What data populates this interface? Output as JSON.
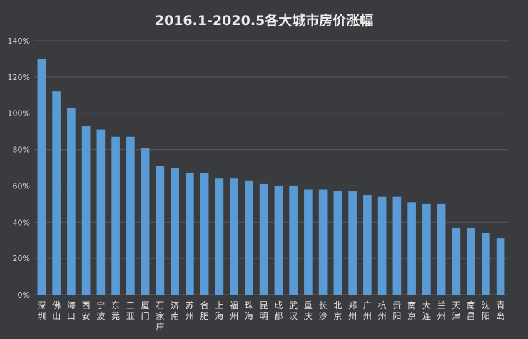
{
  "chart_data": {
    "type": "bar",
    "title": "2016.1-2020.5各大城市房价涨幅",
    "xlabel": "",
    "ylabel": "",
    "ylim": [
      0,
      140
    ],
    "yticks": [
      "0%",
      "20%",
      "40%",
      "60%",
      "80%",
      "100%",
      "120%",
      "140%"
    ],
    "grid": true,
    "bar_color": "#5b9bd5",
    "categories": [
      "深圳",
      "佛山",
      "海口",
      "西安",
      "宁波",
      "东莞",
      "三亚",
      "厦门",
      "石家庄",
      "济南",
      "苏州",
      "合肥",
      "上海",
      "福州",
      "珠海",
      "昆明",
      "成都",
      "武汉",
      "重庆",
      "长沙",
      "北京",
      "郑州",
      "广州",
      "杭州",
      "贵阳",
      "南京",
      "大连",
      "兰州",
      "天津",
      "南昌",
      "沈阳",
      "青岛"
    ],
    "values": [
      130,
      112,
      103,
      93,
      91,
      87,
      87,
      81,
      71,
      70,
      67,
      67,
      64,
      64,
      63,
      61,
      60,
      60,
      58,
      58,
      57,
      57,
      55,
      54,
      54,
      51,
      50,
      50,
      37,
      37,
      34,
      31
    ]
  }
}
